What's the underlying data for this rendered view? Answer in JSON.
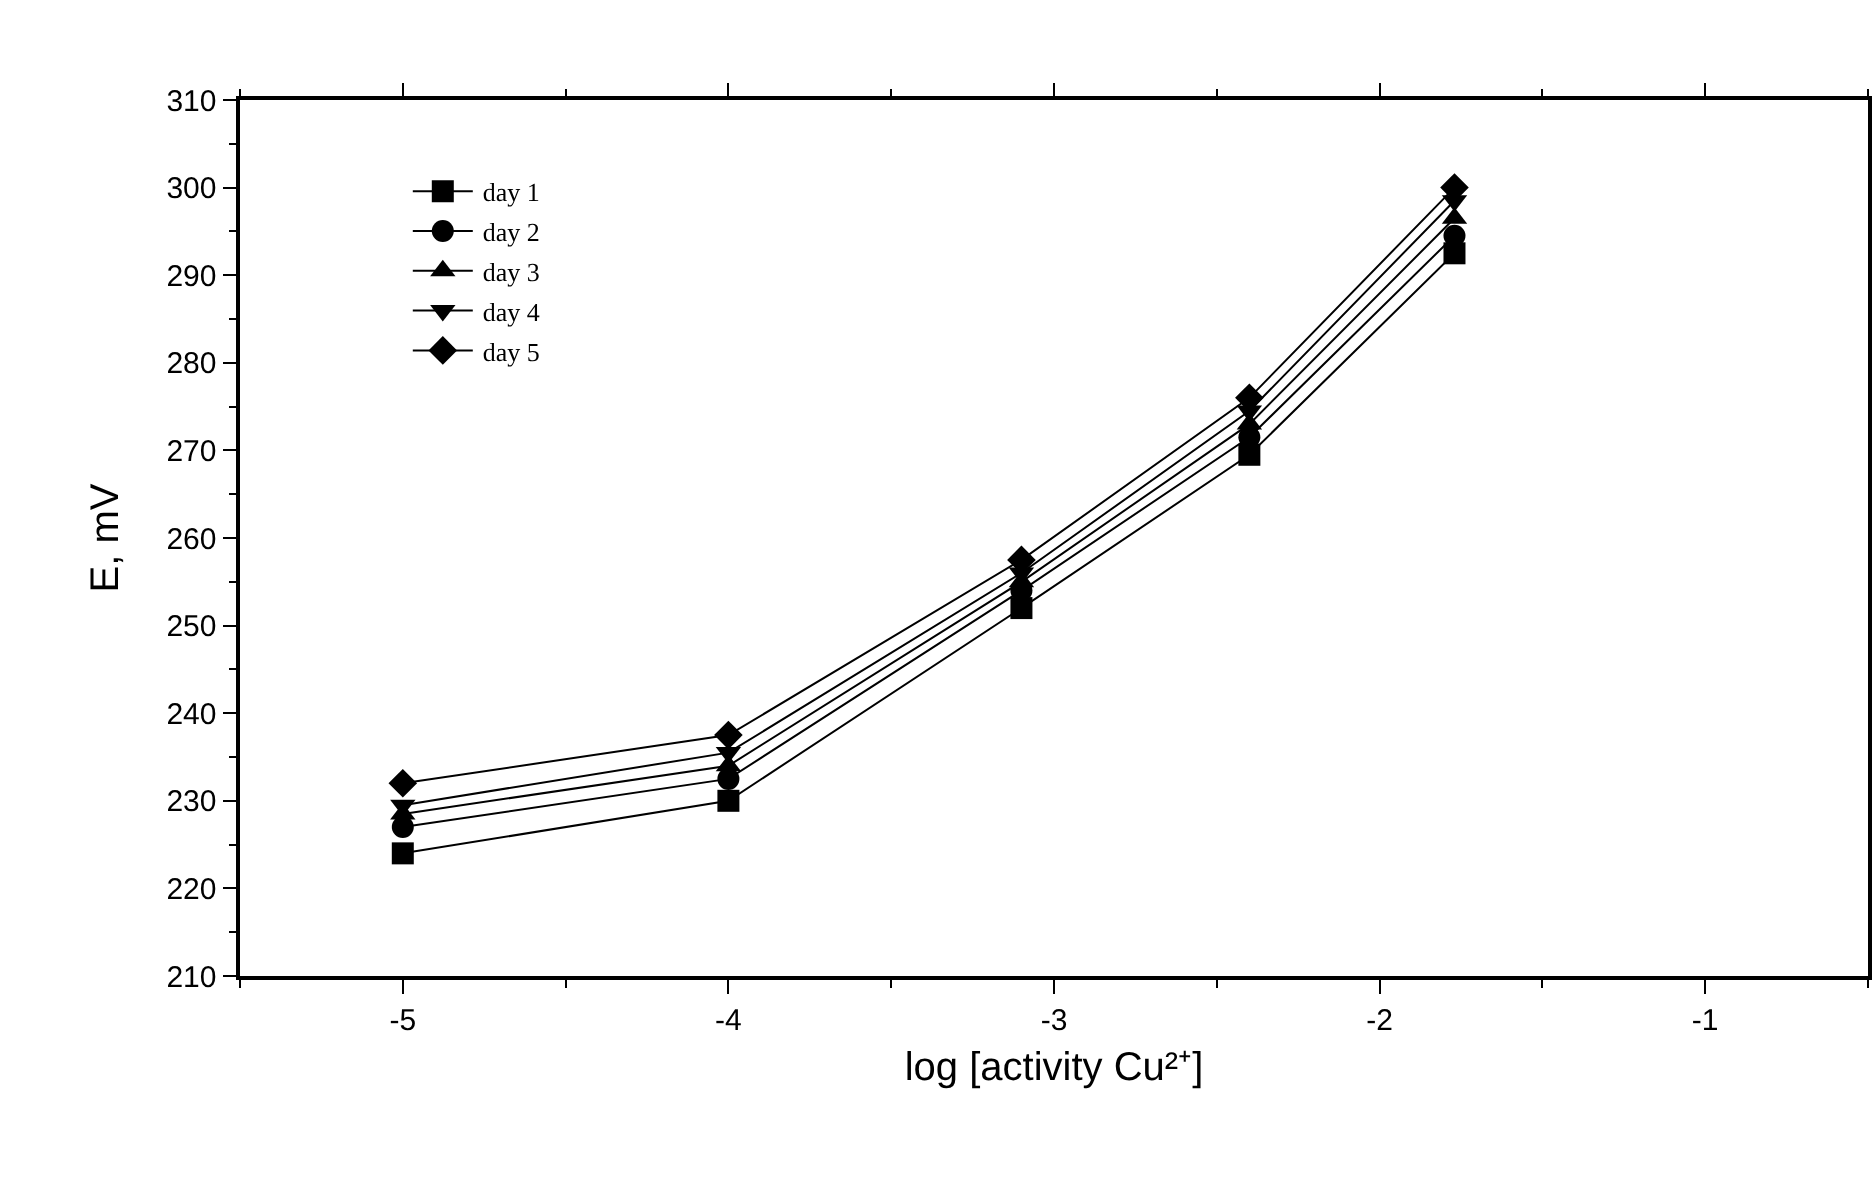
{
  "chart_data": {
    "type": "line",
    "xlabel": "log [activity Cu²⁺]",
    "ylabel": "E, mV",
    "x": [
      -5,
      -4,
      -3.1,
      -2.4,
      -1.77
    ],
    "series": [
      {
        "name": "day 1",
        "color": "#000000",
        "marker": "square",
        "values": [
          224,
          230,
          252,
          269.5,
          292.5
        ]
      },
      {
        "name": "day 2",
        "color": "#000000",
        "marker": "circle",
        "values": [
          227,
          232.5,
          254,
          271.5,
          294.5
        ]
      },
      {
        "name": "day 3",
        "color": "#000000",
        "marker": "triangle",
        "values": [
          228.5,
          234,
          255,
          273,
          296.5
        ]
      },
      {
        "name": "day 4",
        "color": "#000000",
        "marker": "triangle-down",
        "values": [
          229.5,
          235.5,
          256,
          274.5,
          298.5
        ]
      },
      {
        "name": "day 5",
        "color": "#000000",
        "marker": "diamond",
        "values": [
          232,
          237.5,
          257.5,
          276,
          300
        ]
      }
    ],
    "xlim": [
      -5.5,
      -0.5
    ],
    "xticks": [
      -5,
      -4,
      -3,
      -2,
      -1
    ],
    "ylim": [
      210,
      310
    ],
    "yticks": [
      210,
      220,
      230,
      240,
      250,
      260,
      270,
      280,
      290,
      300,
      310
    ],
    "grid": false,
    "legend": "top left",
    "line_style": "solid"
  }
}
